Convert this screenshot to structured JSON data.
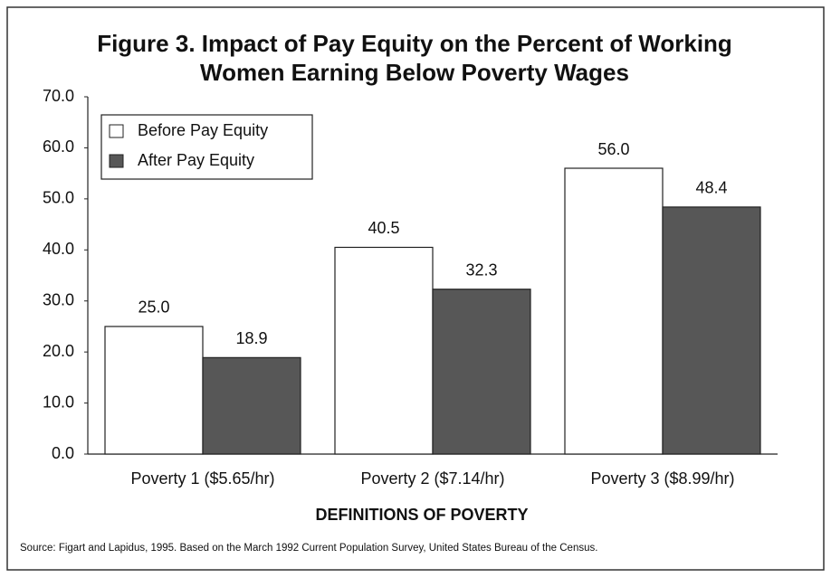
{
  "chart_data": {
    "type": "bar",
    "title": [
      "Figure 3.  Impact of Pay Equity on the Percent of Working",
      "Women Earning Below Poverty Wages"
    ],
    "categories": [
      "Poverty 1 ($5.65/hr)",
      "Poverty 2 ($7.14/hr)",
      "Poverty 3 ($8.99/hr)"
    ],
    "series": [
      {
        "name": "Before Pay Equity",
        "color": "#ffffff",
        "values": [
          25.0,
          40.5,
          56.0
        ],
        "value_labels": [
          "25.0",
          "40.5",
          "56.0"
        ]
      },
      {
        "name": "After Pay Equity",
        "color": "#575757",
        "values": [
          18.9,
          32.3,
          48.4
        ],
        "value_labels": [
          "18.9",
          "32.3",
          "48.4"
        ]
      }
    ],
    "xlabel": "DEFINITIONS OF POVERTY",
    "ylim": [
      0,
      70
    ],
    "yticks": [
      {
        "value": 0,
        "label": "0.0"
      },
      {
        "value": 10,
        "label": "10.0"
      },
      {
        "value": 20,
        "label": "20.0"
      },
      {
        "value": 30,
        "label": "30.0"
      },
      {
        "value": 40,
        "label": "40.0"
      },
      {
        "value": 50,
        "label": "50.0"
      },
      {
        "value": 60,
        "label": "60.0"
      },
      {
        "value": 70,
        "label": "70.0"
      }
    ],
    "legend": "upper left",
    "source": "Source:  Figart and Lapidus, 1995.  Based on the March 1992 Current Population Survey, United States Bureau of the Census."
  }
}
